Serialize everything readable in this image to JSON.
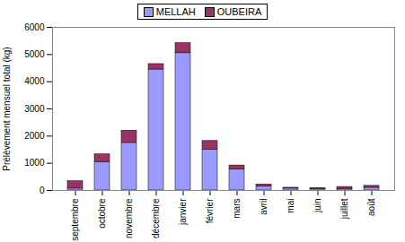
{
  "chart_data": {
    "type": "bar",
    "stacked": true,
    "grid": false,
    "legend": "top",
    "ylabel": "Prélèvement mensuel total (kg)",
    "categories": [
      "septembre",
      "octobre",
      "novembre",
      "décembre",
      "janvier",
      "février",
      "mars",
      "avril",
      "mai",
      "juin",
      "juillet",
      "août"
    ],
    "series": [
      {
        "name": "MELLAH",
        "color": "#9999ff",
        "values": [
          70,
          1050,
          1750,
          4450,
          5050,
          1500,
          780,
          150,
          70,
          60,
          60,
          100
        ]
      },
      {
        "name": "OUBEIRA",
        "color": "#993366",
        "values": [
          270,
          280,
          450,
          200,
          370,
          320,
          140,
          70,
          30,
          30,
          70,
          70
        ]
      }
    ],
    "ylim": [
      0,
      6000
    ],
    "yticks": [
      0,
      1000,
      2000,
      3000,
      4000,
      5000,
      6000
    ]
  }
}
